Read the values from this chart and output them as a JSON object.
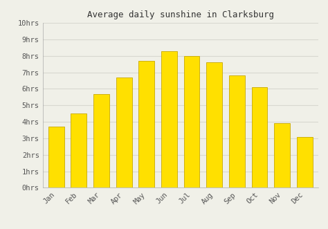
{
  "title": "Average daily sunshine in Clarksburg",
  "months": [
    "Jan",
    "Feb",
    "Mar",
    "Apr",
    "May",
    "Jun",
    "Jul",
    "Aug",
    "Sep",
    "Oct",
    "Nov",
    "Dec"
  ],
  "values": [
    3.7,
    4.5,
    5.7,
    6.7,
    7.7,
    8.3,
    8.0,
    7.6,
    6.8,
    6.1,
    3.9,
    3.1
  ],
  "bar_color": "#FFE000",
  "bar_edge_color": "#C8A800",
  "background_color": "#f0f0e8",
  "plot_bg_color": "#f0f0e8",
  "grid_color": "#d8d8d0",
  "title_fontsize": 9,
  "tick_fontsize": 7.5,
  "ylim": [
    0,
    10
  ],
  "yticks": [
    0,
    1,
    2,
    3,
    4,
    5,
    6,
    7,
    8,
    9,
    10
  ],
  "ytick_labels": [
    "0hrs",
    "1hrs",
    "2hrs",
    "3hrs",
    "4hrs",
    "5hrs",
    "6hrs",
    "7hrs",
    "8hrs",
    "9hrs",
    "10hrs"
  ]
}
